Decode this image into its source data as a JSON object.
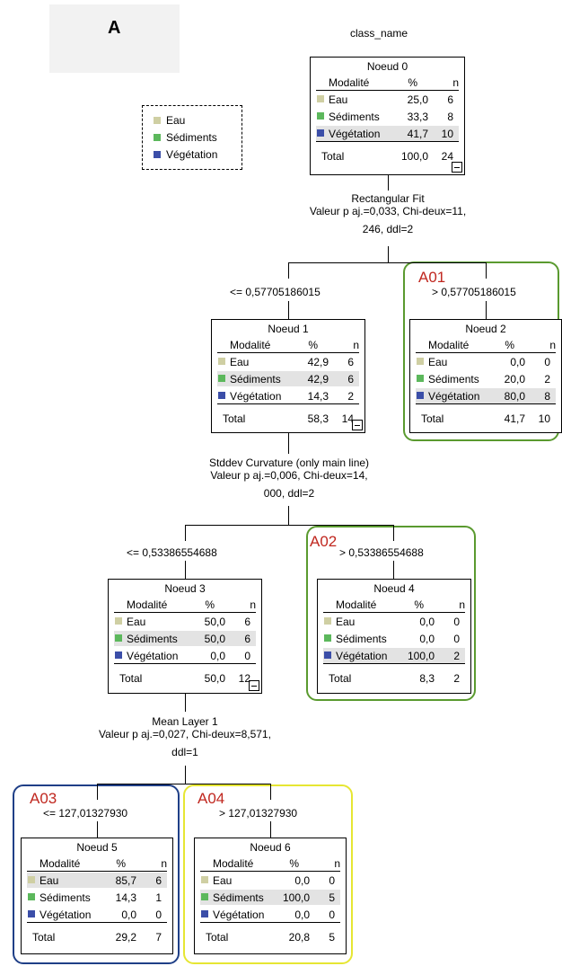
{
  "panel_label": "A",
  "root_label": "class_name",
  "colors": {
    "eau": "#cfcfa3",
    "sediments": "#5cb85c",
    "vegetation": "#3b4ea8",
    "a01": "#5a9a2f",
    "a02": "#5a9a2f",
    "a03": "#1f3f87",
    "a04": "#e6e633",
    "tag": "#c0271f"
  },
  "legend": [
    "Eau",
    "Sédiments",
    "Végétation"
  ],
  "columns": {
    "modalite": "Modalité",
    "pct": "%",
    "n": "n"
  },
  "total_label": "Total",
  "nodes": {
    "n0": {
      "title": "Noeud 0",
      "rows": [
        [
          "Eau",
          "25,0",
          "6"
        ],
        [
          "Sédiments",
          "33,3",
          "8"
        ],
        [
          "Végétation",
          "41,7",
          "10"
        ]
      ],
      "total": [
        "100,0",
        "24"
      ]
    },
    "n1": {
      "title": "Noeud 1",
      "rows": [
        [
          "Eau",
          "42,9",
          "6"
        ],
        [
          "Sédiments",
          "42,9",
          "6"
        ],
        [
          "Végétation",
          "14,3",
          "2"
        ]
      ],
      "total": [
        "58,3",
        "14"
      ]
    },
    "n2": {
      "title": "Noeud 2",
      "rows": [
        [
          "Eau",
          "0,0",
          "0"
        ],
        [
          "Sédiments",
          "20,0",
          "2"
        ],
        [
          "Végétation",
          "80,0",
          "8"
        ]
      ],
      "total": [
        "41,7",
        "10"
      ]
    },
    "n3": {
      "title": "Noeud 3",
      "rows": [
        [
          "Eau",
          "50,0",
          "6"
        ],
        [
          "Sédiments",
          "50,0",
          "6"
        ],
        [
          "Végétation",
          "0,0",
          "0"
        ]
      ],
      "total": [
        "50,0",
        "12"
      ]
    },
    "n4": {
      "title": "Noeud 4",
      "rows": [
        [
          "Eau",
          "0,0",
          "0"
        ],
        [
          "Sédiments",
          "0,0",
          "0"
        ],
        [
          "Végétation",
          "100,0",
          "2"
        ]
      ],
      "total": [
        "8,3",
        "2"
      ]
    },
    "n5": {
      "title": "Noeud 5",
      "rows": [
        [
          "Eau",
          "85,7",
          "6"
        ],
        [
          "Sédiments",
          "14,3",
          "1"
        ],
        [
          "Végétation",
          "0,0",
          "0"
        ]
      ],
      "total": [
        "29,2",
        "7"
      ]
    },
    "n6": {
      "title": "Noeud 6",
      "rows": [
        [
          "Eau",
          "0,0",
          "0"
        ],
        [
          "Sédiments",
          "100,0",
          "5"
        ],
        [
          "Végétation",
          "0,0",
          "0"
        ]
      ],
      "total": [
        "20,8",
        "5"
      ]
    }
  },
  "splits": {
    "s0": [
      "Rectangular Fit",
      "Valeur p aj.=0,033, Chi-deux=11,",
      "246, ddl=2"
    ],
    "s1": [
      "Stddev Curvature (only main line)",
      "Valeur p aj.=0,006, Chi-deux=14,",
      "000, ddl=2"
    ],
    "s3": [
      "Mean Layer 1",
      "Valeur p aj.=0,027, Chi-deux=8,571,",
      "ddl=1"
    ]
  },
  "conditions": {
    "c1": "<= 0,57705186015",
    "c2": "> 0,57705186015",
    "c3": "<= 0,53386554688",
    "c4": "> 0,53386554688",
    "c5": "<= 127,01327930",
    "c6": "> 127,01327930"
  },
  "tags": {
    "a01": "A01",
    "a02": "A02",
    "a03": "A03",
    "a04": "A04"
  }
}
